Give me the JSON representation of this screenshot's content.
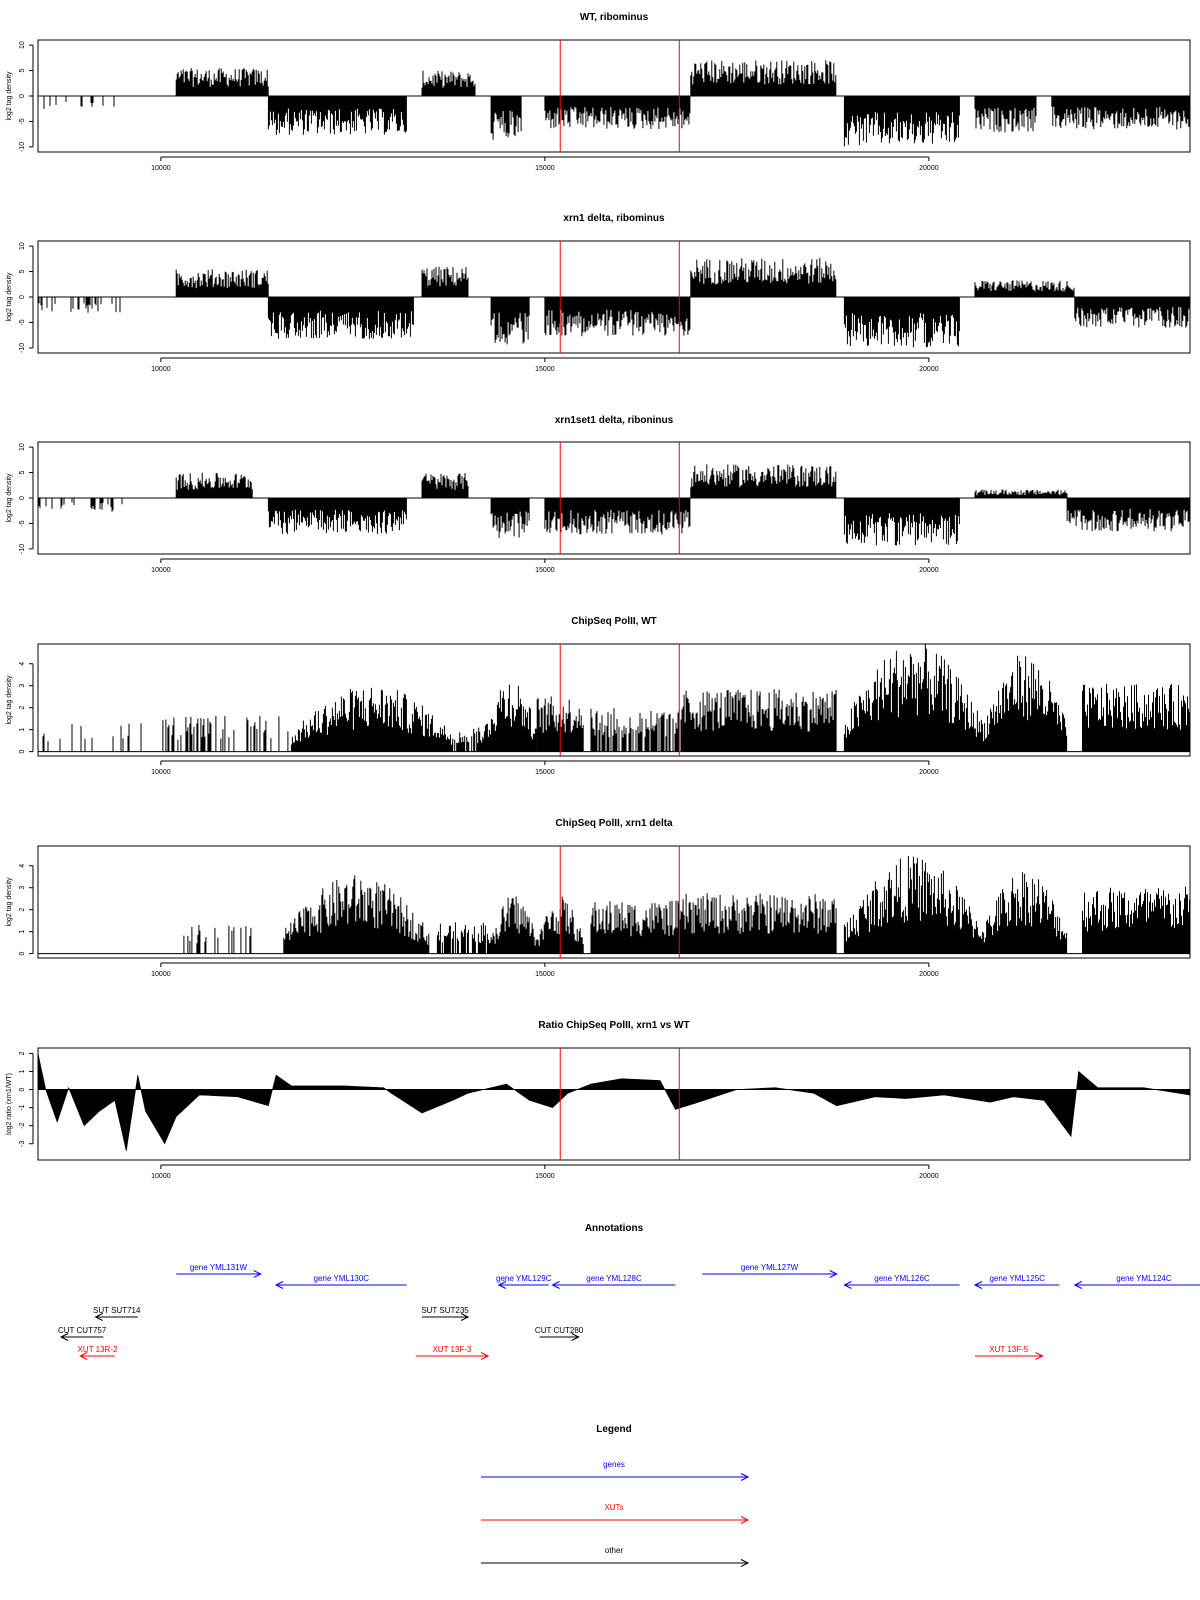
{
  "figure": {
    "x_ticks": [
      10000,
      15000,
      20000
    ],
    "xlim": [
      8400,
      23400
    ],
    "marker_color": "#ff0000",
    "markers": [
      15200,
      16750
    ]
  },
  "chart_data": [
    {
      "id": "wt",
      "type": "bar",
      "title": "WT, ribominus",
      "ylabel": "log2 tag density",
      "ylim": [
        -11,
        11
      ],
      "yticks": [
        -10,
        -5,
        0,
        5,
        10
      ],
      "data_start": 8000,
      "segments": [
        {
          "x0": 8000,
          "x1": 9400,
          "amp": -2.5,
          "density": 0.2,
          "dir": -1
        },
        {
          "x0": 10200,
          "x1": 11400,
          "amp": 5,
          "dir": 1
        },
        {
          "x0": 11400,
          "x1": 13200,
          "amp": -7,
          "dir": -1
        },
        {
          "x0": 13400,
          "x1": 14100,
          "amp": 4.5,
          "dir": 1
        },
        {
          "x0": 14300,
          "x1": 14700,
          "amp": -8,
          "dir": -1
        },
        {
          "x0": 15000,
          "x1": 16900,
          "amp": -6,
          "dir": -1
        },
        {
          "x0": 16900,
          "x1": 18800,
          "amp": 6.5,
          "dir": 1
        },
        {
          "x0": 18900,
          "x1": 20400,
          "amp": -9,
          "dir": -1
        },
        {
          "x0": 20600,
          "x1": 21400,
          "amp": -6.5,
          "dir": -1
        },
        {
          "x0": 21600,
          "x1": 23400,
          "amp": -6,
          "dir": -1
        }
      ]
    },
    {
      "id": "xrn1",
      "type": "bar",
      "title": "xrn1 delta, ribominus",
      "ylabel": "log2 tag density",
      "ylim": [
        -11,
        11
      ],
      "yticks": [
        -10,
        -5,
        0,
        5,
        10
      ],
      "data_start": 8000,
      "segments": [
        {
          "x0": 8000,
          "x1": 9500,
          "amp": -3,
          "density": 0.3,
          "dir": -1
        },
        {
          "x0": 10200,
          "x1": 11400,
          "amp": 5,
          "dir": 1
        },
        {
          "x0": 11400,
          "x1": 13300,
          "amp": -7.5,
          "dir": -1
        },
        {
          "x0": 13400,
          "x1": 14000,
          "amp": 5.5,
          "dir": 1
        },
        {
          "x0": 14300,
          "x1": 14800,
          "amp": -8.5,
          "dir": -1
        },
        {
          "x0": 15000,
          "x1": 16900,
          "amp": -7,
          "dir": -1
        },
        {
          "x0": 16900,
          "x1": 18800,
          "amp": 7,
          "dir": 1
        },
        {
          "x0": 18900,
          "x1": 20400,
          "amp": -9,
          "dir": -1
        },
        {
          "x0": 20600,
          "x1": 21900,
          "amp": 3,
          "dir": 1
        },
        {
          "x0": 21900,
          "x1": 23400,
          "amp": -5.5,
          "dir": -1
        }
      ]
    },
    {
      "id": "xrn1set1",
      "type": "bar",
      "title": "xrn1set1 delta, riboninus",
      "ylabel": "log2 tag density",
      "ylim": [
        -11,
        11
      ],
      "yticks": [
        -10,
        -5,
        0,
        5,
        10
      ],
      "data_start": 8000,
      "segments": [
        {
          "x0": 8000,
          "x1": 9500,
          "amp": -2.5,
          "density": 0.3,
          "dir": -1
        },
        {
          "x0": 10200,
          "x1": 11200,
          "amp": 4.5,
          "dir": 1
        },
        {
          "x0": 11400,
          "x1": 13200,
          "amp": -6.5,
          "dir": -1
        },
        {
          "x0": 13400,
          "x1": 14000,
          "amp": 4.5,
          "dir": 1
        },
        {
          "x0": 14300,
          "x1": 14800,
          "amp": -7.5,
          "dir": -1
        },
        {
          "x0": 15000,
          "x1": 16900,
          "amp": -6.5,
          "dir": -1
        },
        {
          "x0": 16900,
          "x1": 18800,
          "amp": 6,
          "dir": 1
        },
        {
          "x0": 18900,
          "x1": 20400,
          "amp": -8.5,
          "dir": -1
        },
        {
          "x0": 20600,
          "x1": 21800,
          "amp": 1.5,
          "dir": 1
        },
        {
          "x0": 21800,
          "x1": 23400,
          "amp": -6,
          "dir": -1
        }
      ]
    },
    {
      "id": "chip_wt",
      "type": "bar",
      "title": "ChipSeq PolII, WT",
      "ylabel": "log2 tag density",
      "ylim": [
        -0.2,
        4.9
      ],
      "yticks": [
        0,
        1,
        2,
        3,
        4
      ],
      "data_start": 8000,
      "segments": [
        {
          "x0": 8000,
          "x1": 10000,
          "amp": 1.2,
          "density": 0.05,
          "dir": 1
        },
        {
          "x0": 10000,
          "x1": 11700,
          "amp": 1.5,
          "density": 0.35,
          "dir": 1
        },
        {
          "x0": 11700,
          "x1": 13800,
          "amp": 2.8,
          "dir": 1,
          "shape": "bell"
        },
        {
          "x0": 13800,
          "x1": 14200,
          "amp": 1.0,
          "density": 0.6,
          "dir": 1
        },
        {
          "x0": 14200,
          "x1": 14900,
          "amp": 3.2,
          "dir": 1,
          "shape": "bell"
        },
        {
          "x0": 14900,
          "x1": 15500,
          "amp": 2.3,
          "dir": 1
        },
        {
          "x0": 15600,
          "x1": 16800,
          "amp": 1.8,
          "density": 0.7,
          "dir": 1
        },
        {
          "x0": 16800,
          "x1": 18800,
          "amp": 2.6,
          "dir": 1
        },
        {
          "x0": 18900,
          "x1": 20700,
          "amp": 4.6,
          "dir": 1,
          "shape": "bell"
        },
        {
          "x0": 20700,
          "x1": 21800,
          "amp": 4.1,
          "dir": 1,
          "shape": "bell"
        },
        {
          "x0": 22000,
          "x1": 23400,
          "amp": 2.8,
          "dir": 1
        }
      ]
    },
    {
      "id": "chip_xrn1",
      "type": "bar",
      "title": "ChipSeq PolII, xrn1 delta",
      "ylabel": "log2 tag density",
      "ylim": [
        -0.2,
        4.9
      ],
      "yticks": [
        0,
        1,
        2,
        3,
        4
      ],
      "data_start": 8000,
      "segments": [
        {
          "x0": 10300,
          "x1": 11200,
          "amp": 1.2,
          "density": 0.3,
          "dir": 1
        },
        {
          "x0": 11600,
          "x1": 13500,
          "amp": 3.3,
          "dir": 1,
          "shape": "bell"
        },
        {
          "x0": 13600,
          "x1": 14300,
          "amp": 1.3,
          "density": 0.7,
          "dir": 1
        },
        {
          "x0": 14300,
          "x1": 14900,
          "amp": 2.5,
          "dir": 1,
          "shape": "bell"
        },
        {
          "x0": 14900,
          "x1": 15500,
          "amp": 2.4,
          "dir": 1,
          "shape": "bell"
        },
        {
          "x0": 15600,
          "x1": 16800,
          "amp": 2.2,
          "dir": 1
        },
        {
          "x0": 16800,
          "x1": 18800,
          "amp": 2.5,
          "dir": 1
        },
        {
          "x0": 18900,
          "x1": 20700,
          "amp": 4.1,
          "dir": 1,
          "shape": "bell"
        },
        {
          "x0": 20700,
          "x1": 21800,
          "amp": 3.6,
          "dir": 1,
          "shape": "bell"
        },
        {
          "x0": 22000,
          "x1": 23400,
          "amp": 2.8,
          "dir": 1
        }
      ]
    },
    {
      "id": "ratio",
      "type": "area",
      "title": "Ratio ChipSeq PolII, xrn1 vs WT",
      "ylabel": "log2 ratio (xrn1/WT)",
      "ylim": [
        -3.9,
        2.3
      ],
      "yticks": [
        -3,
        -2,
        -1,
        0,
        1,
        2
      ],
      "profile": [
        [
          8400,
          2.0
        ],
        [
          8500,
          0.0
        ],
        [
          8650,
          -1.8
        ],
        [
          8800,
          0.1
        ],
        [
          9000,
          -2.0
        ],
        [
          9200,
          -1.2
        ],
        [
          9400,
          -0.6
        ],
        [
          9550,
          -3.4
        ],
        [
          9700,
          0.8
        ],
        [
          9800,
          -1.2
        ],
        [
          10050,
          -3.0
        ],
        [
          10200,
          -1.5
        ],
        [
          10500,
          -0.3
        ],
        [
          11000,
          -0.4
        ],
        [
          11400,
          -0.9
        ],
        [
          11500,
          0.8
        ],
        [
          11700,
          0.2
        ],
        [
          12400,
          0.2
        ],
        [
          12900,
          0.1
        ],
        [
          13000,
          -0.2
        ],
        [
          13400,
          -1.3
        ],
        [
          13800,
          -0.6
        ],
        [
          14000,
          -0.2
        ],
        [
          14500,
          0.3
        ],
        [
          14800,
          -0.6
        ],
        [
          15100,
          -1.0
        ],
        [
          15300,
          -0.2
        ],
        [
          15600,
          0.3
        ],
        [
          16000,
          0.6
        ],
        [
          16500,
          0.5
        ],
        [
          16700,
          -1.1
        ],
        [
          17000,
          -0.7
        ],
        [
          17500,
          0.0
        ],
        [
          18000,
          0.1
        ],
        [
          18500,
          -0.2
        ],
        [
          18800,
          -0.9
        ],
        [
          19300,
          -0.4
        ],
        [
          19700,
          -0.5
        ],
        [
          20200,
          -0.3
        ],
        [
          20800,
          -0.7
        ],
        [
          21100,
          -0.4
        ],
        [
          21500,
          -0.6
        ],
        [
          21850,
          -2.6
        ],
        [
          21950,
          1.0
        ],
        [
          22200,
          0.1
        ],
        [
          22800,
          0.1
        ],
        [
          23400,
          -0.3
        ]
      ]
    }
  ],
  "annotations": {
    "title": "Annotations",
    "items": [
      {
        "label": "gene YML131W",
        "x0": 10200,
        "x1": 11300,
        "dir": 1,
        "row": 0,
        "kind": "gene"
      },
      {
        "label": "gene YML130C",
        "x0": 11500,
        "x1": 13200,
        "dir": -1,
        "row": 1,
        "kind": "gene"
      },
      {
        "label": "gene YML129C",
        "x0": 14400,
        "x1": 15050,
        "dir": -1,
        "row": 1,
        "kind": "gene"
      },
      {
        "label": "gene YML128C",
        "x0": 15100,
        "x1": 16700,
        "dir": -1,
        "row": 1,
        "kind": "gene"
      },
      {
        "label": "gene YML127W",
        "x0": 17050,
        "x1": 18800,
        "dir": 1,
        "row": 0,
        "kind": "gene"
      },
      {
        "label": "gene YML126C",
        "x0": 18900,
        "x1": 20400,
        "dir": -1,
        "row": 1,
        "kind": "gene"
      },
      {
        "label": "gene YML125C",
        "x0": 20600,
        "x1": 21700,
        "dir": -1,
        "row": 1,
        "kind": "gene"
      },
      {
        "label": "gene YML124C",
        "x0": 21900,
        "x1": 23700,
        "dir": -1,
        "row": 1,
        "kind": "gene"
      },
      {
        "label": "SUT SUT714",
        "x0": 9150,
        "x1": 9700,
        "dir": -1,
        "row": 2,
        "kind": "other"
      },
      {
        "label": "CUT CUT757",
        "x0": 8700,
        "x1": 9250,
        "dir": -1,
        "row": 3,
        "kind": "other"
      },
      {
        "label": "XUT 13R-2",
        "x0": 8950,
        "x1": 9400,
        "dir": -1,
        "row": 4,
        "kind": "xut"
      },
      {
        "label": "SUT SUT235",
        "x0": 13400,
        "x1": 14000,
        "dir": 1,
        "row": 2,
        "kind": "other"
      },
      {
        "label": "CUT CUT280",
        "x0": 14930,
        "x1": 15440,
        "dir": 1,
        "row": 3,
        "kind": "other"
      },
      {
        "label": "XUT 13F-3",
        "x0": 13320,
        "x1": 14260,
        "dir": 1,
        "row": 4,
        "kind": "xut"
      },
      {
        "label": "XUT 13F-5",
        "x0": 20600,
        "x1": 21480,
        "dir": 1,
        "row": 4,
        "kind": "xut"
      }
    ]
  },
  "legend": {
    "title": "Legend",
    "entries": [
      {
        "label": "genes",
        "kind": "gene"
      },
      {
        "label": "XUTs",
        "kind": "xut"
      },
      {
        "label": "other",
        "kind": "other"
      }
    ]
  },
  "colors": {
    "gene": "#0000ff",
    "xut": "#ff0000",
    "other": "#000000",
    "data": "#000000"
  }
}
